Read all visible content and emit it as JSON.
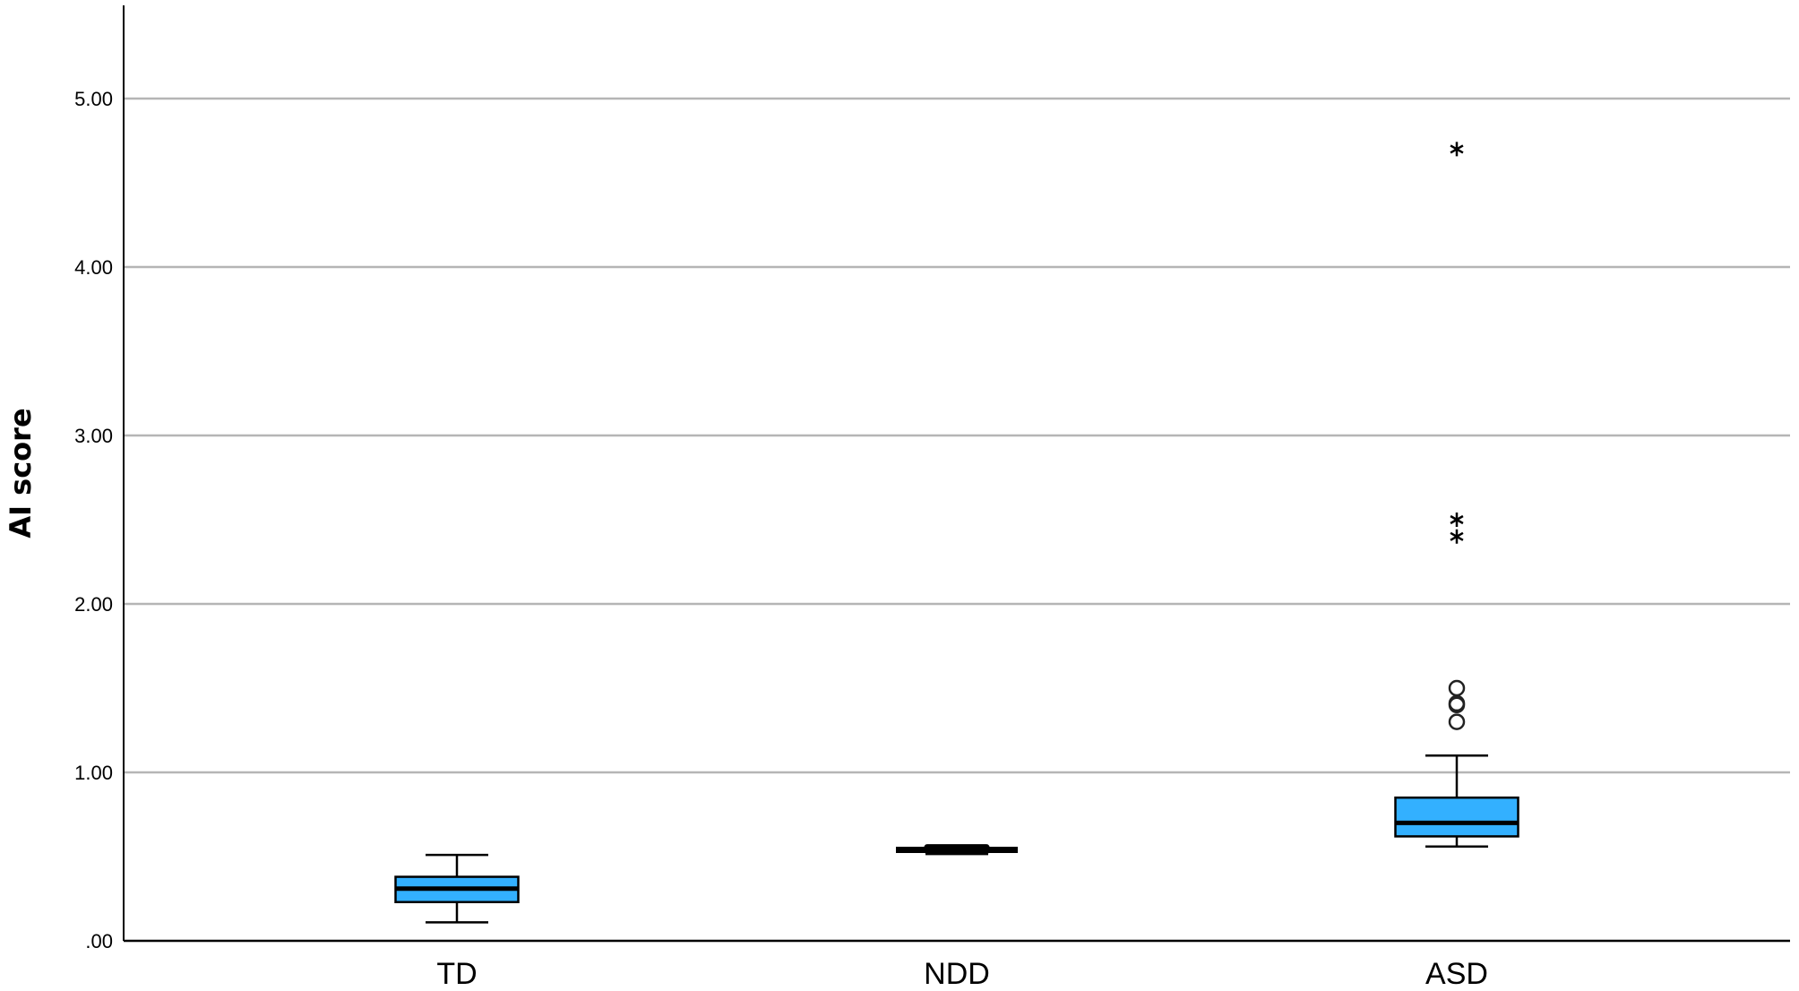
{
  "chart_data": {
    "type": "boxplot",
    "title": "",
    "xlabel": "",
    "ylabel": "AI score",
    "ylim": [
      0,
      5.55
    ],
    "yticks": [
      0,
      1,
      2,
      3,
      4,
      5
    ],
    "ytick_labels": [
      ".00",
      "1.00",
      "2.00",
      "3.00",
      "4.00",
      "5.00"
    ],
    "grid": "horizontal",
    "box_color": "#33b0ff",
    "categories": [
      "TD",
      "NDD",
      "ASD"
    ],
    "boxes": [
      {
        "category": "TD",
        "whisker_low": 0.11,
        "q1": 0.23,
        "median": 0.31,
        "q3": 0.38,
        "whisker_high": 0.51,
        "outliers": [],
        "extremes": []
      },
      {
        "category": "NDD",
        "whisker_low": 0.53,
        "q1": 0.53,
        "median": 0.54,
        "q3": 0.55,
        "whisker_high": 0.55,
        "outliers": [],
        "extremes": []
      },
      {
        "category": "ASD",
        "whisker_low": 0.56,
        "q1": 0.62,
        "median": 0.7,
        "q3": 0.85,
        "whisker_high": 1.1,
        "outliers": [
          1.3,
          1.4,
          1.41,
          1.5
        ],
        "extremes": [
          2.4,
          2.5,
          4.7
        ]
      }
    ]
  }
}
